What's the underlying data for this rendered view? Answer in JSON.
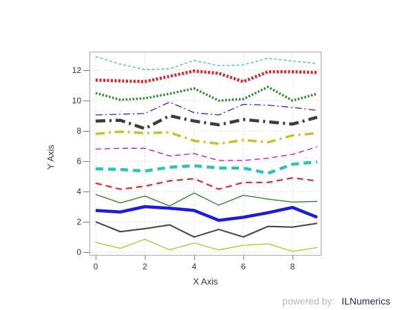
{
  "page": {
    "background": "#ffffff"
  },
  "footer": {
    "powered_by": "powered by:",
    "brand": "ILNumerics",
    "powered_by_color": "#b5b5bd",
    "brand_color": "#27275d"
  },
  "colors": {
    "grid": "#dcdcdc",
    "plot_border": "#a5a5a5",
    "tick": "#7a7a7a",
    "tick_label": "#333333",
    "axis_title": "#383838"
  },
  "chart_data": {
    "type": "line",
    "title": "",
    "xlabel": "X Axis",
    "ylabel": "Y Axis",
    "grid": true,
    "legend": null,
    "x": [
      0,
      1,
      2,
      3,
      4,
      5,
      6,
      7,
      8,
      9
    ],
    "xlim": [
      -0.25,
      9.42
    ],
    "ylim": [
      -0.23,
      13.23
    ],
    "xticks": {
      "values": [
        0,
        2,
        4,
        6,
        8
      ],
      "labels": [
        "0",
        "2",
        "4",
        "6",
        "8"
      ]
    },
    "yticks": {
      "values": [
        0,
        2,
        4,
        6,
        8,
        10,
        12
      ],
      "labels": [
        "0",
        "2",
        "4",
        "6",
        "8",
        "10",
        "12"
      ]
    },
    "series": [
      {
        "name": "line-cyan-dotted-thin",
        "color": "#2cbcbc",
        "width": 1.3,
        "style": "dashed-small",
        "dash": "4,3",
        "values": [
          12.9,
          12.4,
          12.05,
          12.1,
          12.65,
          12.3,
          12.35,
          12.8,
          12.6,
          12.45
        ]
      },
      {
        "name": "line-red-dotted-thick",
        "color": "#de2121",
        "width": 4.5,
        "style": "dotted",
        "dash": "3,2.5",
        "values": [
          11.35,
          11.3,
          11.25,
          11.6,
          11.95,
          11.8,
          11.25,
          11.9,
          11.9,
          11.85
        ]
      },
      {
        "name": "line-green-dotted",
        "color": "#2e8b2e",
        "width": 3.5,
        "style": "dotted",
        "dash": "2.5,2.5",
        "values": [
          10.5,
          10.05,
          10.15,
          10.45,
          10.8,
          10.0,
          10.1,
          10.9,
          10.0,
          10.45
        ]
      },
      {
        "name": "line-blue-dashdot-thin",
        "color": "#2121cd",
        "width": 1.3,
        "style": "dash-dot",
        "dash": "10,4,2,4",
        "values": [
          9.05,
          9.1,
          9.15,
          9.9,
          9.2,
          9.05,
          9.75,
          9.7,
          9.55,
          9.35
        ]
      },
      {
        "name": "line-gray-dashdot-thick",
        "color": "#3c3c3c",
        "width": 4.5,
        "style": "dash-dot",
        "dash": "14,6,3,6",
        "values": [
          8.65,
          8.7,
          8.15,
          9.0,
          8.65,
          8.4,
          8.75,
          8.6,
          8.45,
          8.9
        ]
      },
      {
        "name": "line-olive-dashdot",
        "color": "#c4c41e",
        "width": 3.5,
        "style": "dash-dot",
        "dash": "13,6,3,6",
        "values": [
          7.8,
          7.95,
          7.85,
          7.9,
          7.35,
          7.15,
          7.4,
          7.25,
          7.7,
          7.85
        ]
      },
      {
        "name": "line-magenta-dashed-thin",
        "color": "#cb00cb",
        "width": 1.3,
        "style": "dashed",
        "dash": "8,5",
        "values": [
          6.8,
          6.85,
          6.85,
          6.35,
          6.5,
          6.05,
          6.05,
          6.2,
          6.45,
          6.95
        ]
      },
      {
        "name": "line-cyan-dashed-thick",
        "color": "#2cc4ba",
        "width": 4.5,
        "style": "dashed",
        "dash": "11,7",
        "values": [
          5.5,
          5.45,
          5.35,
          5.6,
          5.7,
          5.55,
          5.55,
          5.2,
          5.8,
          5.95
        ]
      },
      {
        "name": "line-red-dashed",
        "color": "#e62222",
        "width": 2.2,
        "style": "dashed",
        "dash": "9,6",
        "values": [
          4.55,
          4.15,
          4.35,
          4.7,
          4.85,
          4.15,
          4.6,
          4.6,
          4.9,
          4.7
        ]
      },
      {
        "name": "line-green-solid-thin",
        "color": "#1e7d1e",
        "width": 1.3,
        "style": "solid",
        "dash": null,
        "values": [
          3.8,
          3.25,
          3.7,
          3.05,
          3.9,
          3.1,
          3.75,
          3.5,
          3.3,
          3.35
        ]
      },
      {
        "name": "line-blue-solid-thick",
        "color": "#1a1ae0",
        "width": 4.5,
        "style": "solid",
        "dash": null,
        "values": [
          2.75,
          2.65,
          3.0,
          2.9,
          2.75,
          2.1,
          2.3,
          2.6,
          2.95,
          2.3
        ]
      },
      {
        "name": "line-gray-solid",
        "color": "#4a4a4a",
        "width": 2.2,
        "style": "solid",
        "dash": null,
        "values": [
          2.0,
          1.35,
          1.55,
          1.8,
          1.0,
          1.5,
          1.0,
          1.7,
          1.65,
          1.9
        ]
      },
      {
        "name": "line-olive-solid-thin",
        "color": "#bcbc1e",
        "width": 1.3,
        "style": "solid",
        "dash": null,
        "values": [
          0.65,
          0.25,
          0.85,
          0.15,
          0.6,
          0.15,
          0.45,
          0.55,
          0.05,
          0.3
        ]
      }
    ]
  }
}
